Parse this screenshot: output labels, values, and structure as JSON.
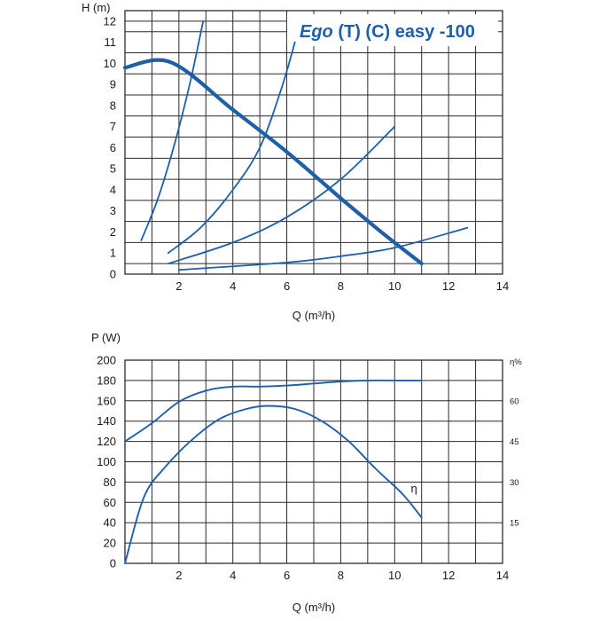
{
  "chart_data": [
    {
      "type": "line",
      "title": "Ego (T) (C) easy -100",
      "title_parts": {
        "brand": "Ego",
        "rest": " (T) (C) easy -100"
      },
      "xlabel": "Q (m³/h)",
      "ylabel": "H (m)",
      "xlim": [
        0,
        14
      ],
      "ylim": [
        0,
        12.5
      ],
      "x_ticks": [
        "2",
        "4",
        "6",
        "8",
        "10",
        "12",
        "14"
      ],
      "y_ticks": [
        "0",
        "1",
        "2",
        "3",
        "4",
        "5",
        "6",
        "7",
        "8",
        "9",
        "10",
        "11",
        "12"
      ],
      "grid": true,
      "colors": {
        "line": "#1f5fa8",
        "grid": "#2a2a2a"
      },
      "series": [
        {
          "x": [
            0,
            1.7,
            4.0,
            6.0,
            8.0,
            9.5,
            11.0
          ],
          "y": [
            9.8,
            10.05,
            7.8,
            5.8,
            3.6,
            2.0,
            0.5
          ],
          "style": "bold"
        },
        {
          "x": [
            0.6,
            1.2,
            1.8,
            2.4,
            2.9
          ],
          "y": [
            1.6,
            3.5,
            6.0,
            9.0,
            12.0
          ],
          "style": "thin"
        },
        {
          "x": [
            1.6,
            2.8,
            4.0,
            5.0,
            5.8,
            6.3
          ],
          "y": [
            1.0,
            2.2,
            4.0,
            6.0,
            8.8,
            11.0
          ],
          "style": "thin"
        },
        {
          "x": [
            1.6,
            4.0,
            6.0,
            8.0,
            10.0
          ],
          "y": [
            0.5,
            1.5,
            2.7,
            4.5,
            7.0
          ],
          "style": "thin"
        },
        {
          "x": [
            2.0,
            6.0,
            8.0,
            10.0,
            12.7
          ],
          "y": [
            0.2,
            0.55,
            0.85,
            1.25,
            2.2
          ],
          "style": "thin"
        }
      ]
    },
    {
      "type": "line",
      "xlabel": "Q (m³/h)",
      "ylabel": "P (W)",
      "y2label": "η%",
      "xlim": [
        0,
        14
      ],
      "ylim": [
        0,
        200
      ],
      "y2lim": [
        0,
        75
      ],
      "x_ticks": [
        "2",
        "4",
        "6",
        "8",
        "10",
        "12",
        "14"
      ],
      "y_ticks": [
        "0",
        "20",
        "40",
        "60",
        "80",
        "100",
        "120",
        "140",
        "160",
        "180",
        "200"
      ],
      "y2_ticks": [
        "15",
        "30",
        "45",
        "60"
      ],
      "grid": true,
      "annotations": [
        {
          "text": "η",
          "x": 10.6,
          "y": 70
        }
      ],
      "colors": {
        "line": "#1f5fa8",
        "grid": "#2a2a2a"
      },
      "series": [
        {
          "name": "P (W)",
          "x": [
            0,
            1,
            2,
            3,
            4,
            5,
            6,
            7,
            8,
            9,
            10,
            11
          ],
          "y": [
            120,
            138,
            159,
            170,
            174,
            174,
            175,
            177,
            179,
            180,
            180,
            180
          ]
        },
        {
          "name": "η",
          "x": [
            0,
            0.7,
            1.5,
            2.5,
            3.5,
            4.5,
            5.3,
            6.3,
            7.3,
            8.3,
            9.3,
            10.3,
            11.0
          ],
          "y": [
            0,
            65,
            95,
            122,
            142,
            152,
            155,
            152,
            140,
            120,
            93,
            68,
            45
          ]
        }
      ]
    }
  ]
}
